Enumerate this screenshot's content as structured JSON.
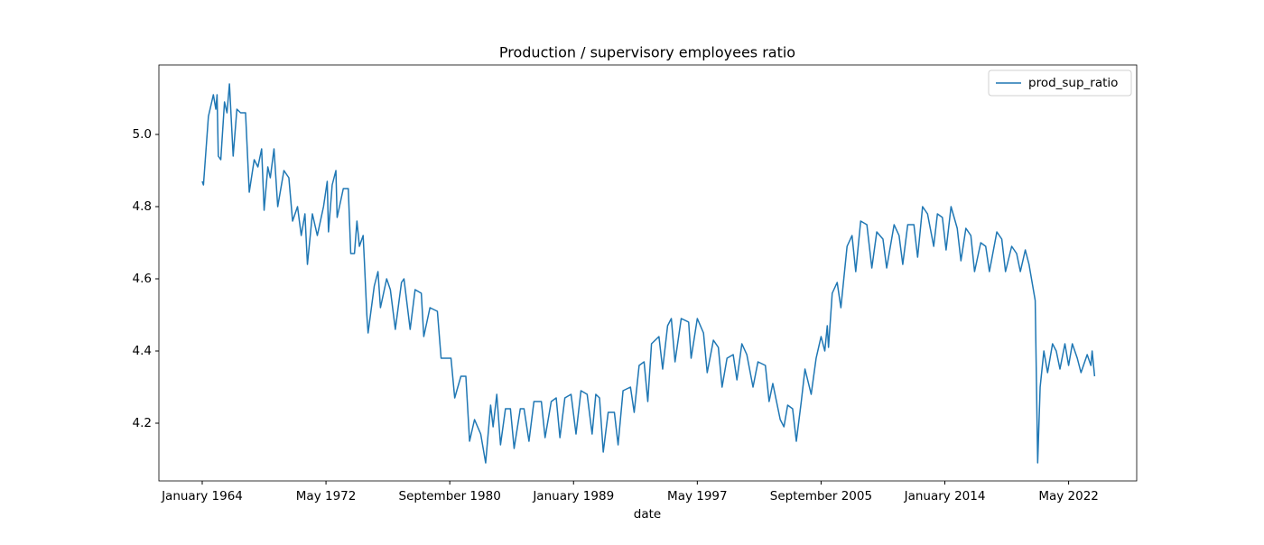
{
  "chart_data": {
    "type": "line",
    "title": "Production / supervisory employees ratio",
    "x_label": "date",
    "series": [
      {
        "name": "prod_sup_ratio",
        "color": "#1f77b4",
        "x": [
          0,
          1,
          5,
          9,
          11,
          12,
          13,
          15,
          18,
          20,
          22,
          25,
          28,
          31,
          35,
          38,
          42,
          45,
          48,
          50,
          53,
          55,
          58,
          61,
          66,
          70,
          73,
          77,
          80,
          83,
          85,
          89,
          93,
          98,
          101,
          102,
          105,
          108,
          109,
          114,
          118,
          120,
          123,
          125,
          127,
          130,
          131,
          133,
          134,
          139,
          142,
          144,
          149,
          152,
          156,
          161,
          163,
          168,
          172,
          177,
          179,
          184,
          190,
          193,
          197,
          201,
          204,
          209,
          213,
          216,
          220,
          225,
          229,
          233,
          235,
          238,
          241,
          245,
          249,
          252,
          257,
          260,
          264,
          268,
          274,
          277,
          282,
          286,
          289,
          293,
          298,
          302,
          306,
          311,
          315,
          318,
          321,
          324,
          328,
          333,
          336,
          340,
          346,
          349,
          353,
          357,
          360,
          363,
          369,
          372,
          376,
          379,
          382,
          387,
          393,
          395,
          400,
          405,
          408,
          413,
          417,
          420,
          424,
          429,
          432,
          436,
          440,
          445,
          449,
          455,
          458,
          461,
          467,
          470,
          473,
          477,
          480,
          484,
          487,
          492,
          496,
          500,
          503,
          505,
          506,
          509,
          513,
          516,
          521,
          525,
          528,
          532,
          537,
          541,
          545,
          550,
          553,
          559,
          563,
          566,
          570,
          575,
          578,
          582,
          586,
          591,
          594,
          598,
          601,
          605,
          610,
          613,
          617,
          621,
          624,
          629,
          633,
          636,
          642,
          646,
          649,
          654,
          658,
          661,
          665,
          668,
          671,
          673,
          675,
          677,
          680,
          683,
          687,
          690,
          693,
          697,
          700,
          703,
          707,
          710,
          715,
          718,
          719,
          721
        ],
        "values": [
          4.87,
          4.86,
          5.05,
          5.11,
          5.07,
          5.11,
          4.94,
          4.93,
          5.09,
          5.06,
          5.14,
          4.94,
          5.07,
          5.06,
          5.06,
          4.84,
          4.93,
          4.91,
          4.96,
          4.79,
          4.91,
          4.88,
          4.96,
          4.8,
          4.9,
          4.88,
          4.76,
          4.8,
          4.72,
          4.78,
          4.64,
          4.78,
          4.72,
          4.8,
          4.87,
          4.73,
          4.86,
          4.9,
          4.77,
          4.85,
          4.85,
          4.67,
          4.67,
          4.76,
          4.69,
          4.72,
          4.65,
          4.5,
          4.45,
          4.58,
          4.62,
          4.52,
          4.6,
          4.57,
          4.46,
          4.59,
          4.6,
          4.46,
          4.57,
          4.56,
          4.44,
          4.52,
          4.51,
          4.38,
          4.38,
          4.38,
          4.27,
          4.33,
          4.33,
          4.15,
          4.21,
          4.17,
          4.09,
          4.25,
          4.19,
          4.28,
          4.14,
          4.24,
          4.24,
          4.13,
          4.24,
          4.24,
          4.15,
          4.26,
          4.26,
          4.16,
          4.26,
          4.27,
          4.16,
          4.27,
          4.28,
          4.17,
          4.29,
          4.28,
          4.17,
          4.28,
          4.27,
          4.12,
          4.23,
          4.23,
          4.14,
          4.29,
          4.3,
          4.23,
          4.36,
          4.37,
          4.26,
          4.42,
          4.44,
          4.35,
          4.47,
          4.49,
          4.37,
          4.49,
          4.48,
          4.38,
          4.49,
          4.45,
          4.34,
          4.43,
          4.41,
          4.3,
          4.38,
          4.39,
          4.32,
          4.42,
          4.39,
          4.3,
          4.37,
          4.36,
          4.26,
          4.31,
          4.21,
          4.19,
          4.25,
          4.24,
          4.15,
          4.26,
          4.35,
          4.28,
          4.38,
          4.44,
          4.4,
          4.47,
          4.41,
          4.56,
          4.59,
          4.52,
          4.69,
          4.72,
          4.62,
          4.76,
          4.75,
          4.63,
          4.73,
          4.71,
          4.63,
          4.75,
          4.72,
          4.64,
          4.75,
          4.75,
          4.66,
          4.8,
          4.78,
          4.69,
          4.78,
          4.77,
          4.68,
          4.8,
          4.74,
          4.65,
          4.74,
          4.72,
          4.62,
          4.7,
          4.69,
          4.62,
          4.73,
          4.71,
          4.62,
          4.69,
          4.67,
          4.62,
          4.68,
          4.64,
          4.58,
          4.54,
          4.09,
          4.3,
          4.4,
          4.34,
          4.42,
          4.4,
          4.35,
          4.42,
          4.36,
          4.42,
          4.38,
          4.34,
          4.39,
          4.36,
          4.4,
          4.33
        ]
      }
    ],
    "xlim": [
      -35,
      755
    ],
    "ylim": [
      4.04,
      5.1925
    ],
    "xticks": [
      {
        "value": 0,
        "label": "January 1964"
      },
      {
        "value": 100,
        "label": "May 1972"
      },
      {
        "value": 200,
        "label": "September 1980"
      },
      {
        "value": 300,
        "label": "January 1989"
      },
      {
        "value": 400,
        "label": "May 1997"
      },
      {
        "value": 500,
        "label": "September 2005"
      },
      {
        "value": 600,
        "label": "January 2014"
      },
      {
        "value": 700,
        "label": "May 2022"
      }
    ],
    "yticks": [
      4.2,
      4.4,
      4.6,
      4.8,
      {
        "value": 5,
        "label": "5.0"
      }
    ],
    "legend": "upper right"
  }
}
